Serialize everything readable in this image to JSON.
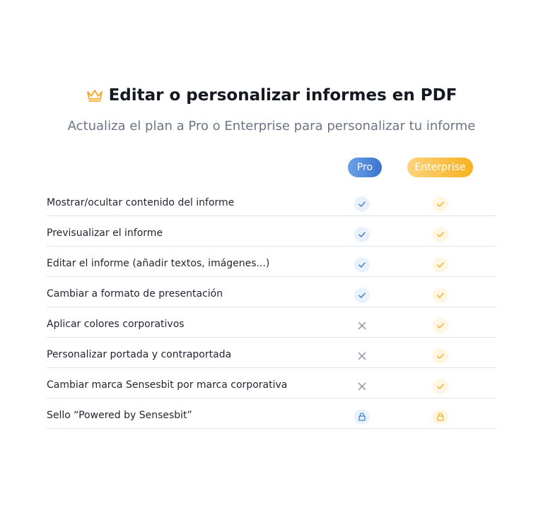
{
  "header": {
    "title": "Editar o personalizar informes en PDF",
    "subtitle": "Actualiza el plan a Pro o Enterprise para personalizar tu informe"
  },
  "plans": [
    "Pro",
    "Enterprise"
  ],
  "rows": [
    "Mostrar/ocultar contenido del informe",
    "Previsualizar el informe",
    "Editar el informe (añadir textos, imágenes...)",
    "Cambiar a formato de presentación",
    "Aplicar colores corporativos",
    "Personalizar portada y contraportada",
    "Cambiar marca Sensesbit por marca corporativa",
    "Sello “Powered by Sensesbit”"
  ]
}
